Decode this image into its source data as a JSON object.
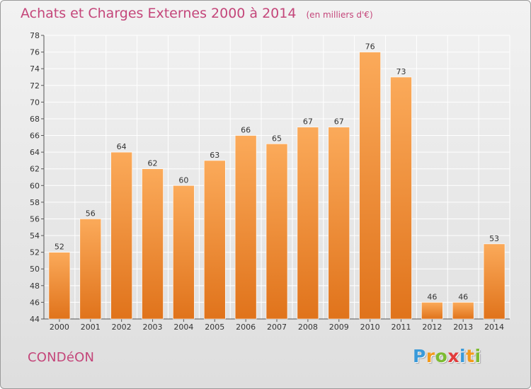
{
  "header": {
    "title": "Achats et Charges Externes 2000 à 2014",
    "subtitle": "(en milliers d'€)"
  },
  "footer": {
    "place": "CONDéON",
    "logo_letters": [
      "P",
      "r",
      "o",
      "x",
      "i",
      "t",
      "i"
    ],
    "logo_colors": [
      "#3a9ad9",
      "#f39a1c",
      "#7cbb32",
      "#e23b3b",
      "#3a9ad9",
      "#f39a1c",
      "#7cbb32"
    ]
  },
  "colors": {
    "bar_top": "#fbaa5a",
    "bar_bottom": "#e0731b",
    "accent": "#c4467a",
    "grid": "#ffffff",
    "text": "#333333"
  },
  "chart_data": {
    "type": "bar",
    "categories": [
      "2000",
      "2001",
      "2002",
      "2003",
      "2004",
      "2005",
      "2006",
      "2007",
      "2008",
      "2009",
      "2010",
      "2011",
      "2012",
      "2013",
      "2014"
    ],
    "values": [
      52,
      56,
      64,
      62,
      60,
      63,
      66,
      65,
      67,
      67,
      76,
      73,
      46,
      46,
      53
    ],
    "title": "Achats et Charges Externes 2000 à 2014",
    "subtitle": "(en milliers d'€)",
    "ylim": [
      44,
      78
    ],
    "ytick_step": 2,
    "grid": true,
    "legend": "none"
  }
}
